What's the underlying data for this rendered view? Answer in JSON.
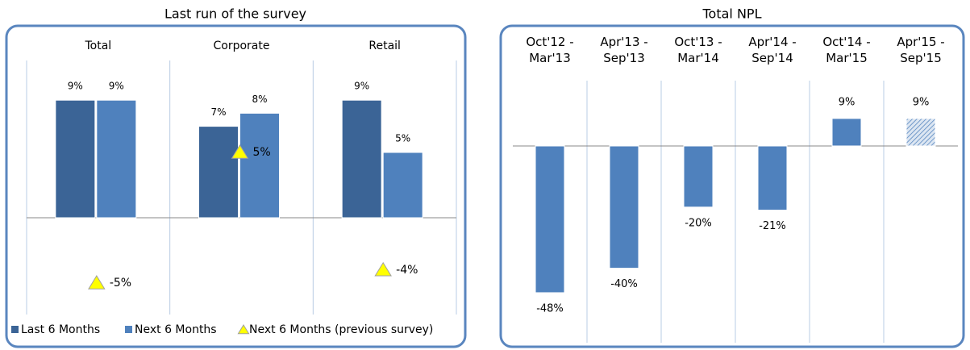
{
  "chart_data": [
    {
      "type": "bar",
      "title": "Last run of the survey",
      "categories": [
        "Total",
        "Corporate",
        "Retail"
      ],
      "series": [
        {
          "name": "Last 6 Months",
          "color": "#3b6496",
          "values": [
            9,
            7,
            9
          ],
          "value_labels": [
            "9%",
            "7%",
            "9%"
          ]
        },
        {
          "name": "Next 6 Months",
          "color": "#4f81bd",
          "values": [
            9,
            8,
            5
          ],
          "value_labels": [
            "9%",
            "8%",
            "5%"
          ]
        },
        {
          "name": "Next 6 Months (previous survey)",
          "color": "#ffff00",
          "marker": "triangle",
          "values": [
            -5,
            5,
            -4
          ],
          "value_labels": [
            "-5%",
            "5%",
            "-4%"
          ]
        }
      ],
      "ylim": [
        -8,
        12
      ],
      "legend": "bottom"
    },
    {
      "type": "bar",
      "title": "Total NPL",
      "categories": [
        "Oct'12 - Mar'13",
        "Apr'13 - Sep'13",
        "Oct'13 - Mar'14",
        "Apr'14 - Sep'14",
        "Oct'14 - Mar'15",
        "Apr'15 - Sep'15"
      ],
      "values": [
        -48,
        -40,
        -20,
        -21,
        9,
        9
      ],
      "value_labels": [
        "-48%",
        "-40%",
        "-20%",
        "-21%",
        "9%",
        "9%"
      ],
      "color": "#4f81bd",
      "hatched": [
        false,
        false,
        false,
        false,
        false,
        true
      ],
      "ylim": [
        -64,
        22
      ]
    }
  ]
}
